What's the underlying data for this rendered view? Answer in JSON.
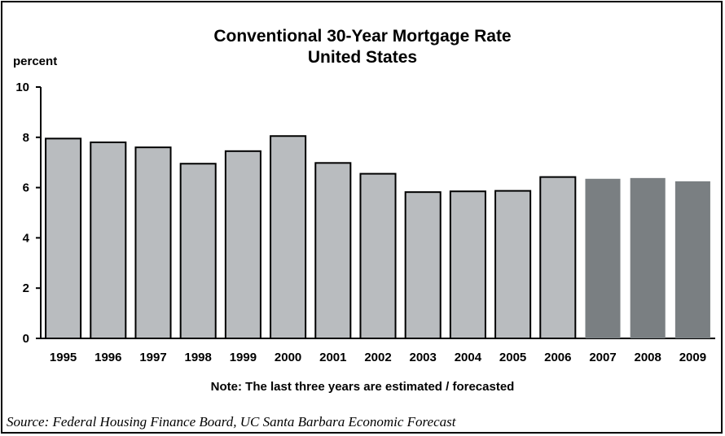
{
  "chart_data": {
    "type": "bar",
    "title": "Conventional 30-Year Mortgage Rate",
    "subtitle": "United States",
    "ylabel": "percent",
    "note": "Note: The last three years are estimated / forecasted",
    "source": "Source: Federal Housing Finance Board, UC Santa Barbara Economic Forecast",
    "ylim": [
      0,
      10
    ],
    "yticks": [
      0,
      2,
      4,
      6,
      8,
      10
    ],
    "categories": [
      "1995",
      "1996",
      "1997",
      "1998",
      "1999",
      "2000",
      "2001",
      "2002",
      "2003",
      "2004",
      "2005",
      "2006",
      "2007",
      "2008",
      "2009"
    ],
    "values": [
      7.95,
      7.8,
      7.6,
      6.95,
      7.45,
      8.05,
      6.98,
      6.55,
      5.82,
      5.85,
      5.87,
      6.42,
      6.35,
      6.38,
      6.25
    ],
    "forecast_from_index": 12,
    "colors": {
      "actual": "#b9bcbf",
      "forecast": "#7a7f82",
      "outline": "#000000"
    },
    "grid": false
  }
}
